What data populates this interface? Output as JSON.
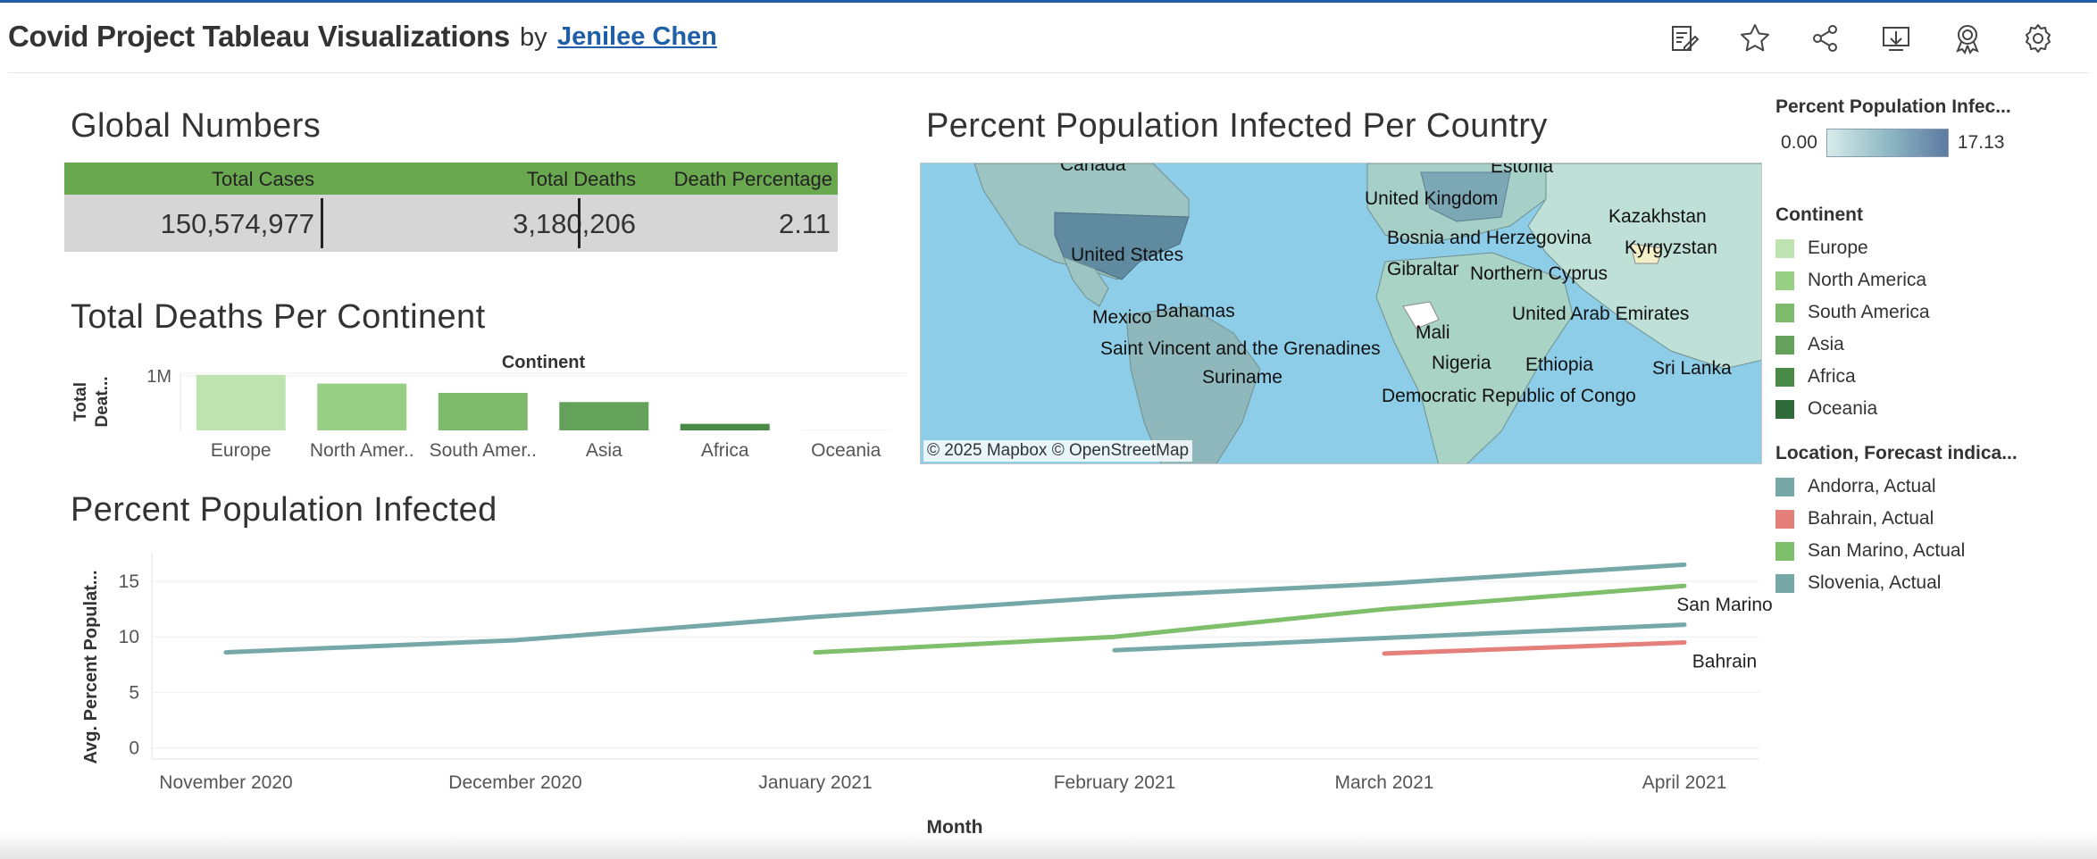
{
  "header": {
    "title": "Covid Project Tableau Visualizations",
    "by": "by",
    "author": "Jenilee Chen",
    "icons": [
      "edit-icon",
      "favorite-star-icon",
      "share-icon",
      "download-icon",
      "badge-icon",
      "settings-gear-icon"
    ]
  },
  "global_numbers": {
    "title": "Global Numbers",
    "headers": [
      "Total Cases",
      "Total Deaths",
      "Death Percentage"
    ],
    "values": [
      "150,574,977",
      "3,180,206",
      "2.11"
    ],
    "header_color": "#6aa84f"
  },
  "map": {
    "title": "Percent Population Infected Per Country",
    "labels": [
      "Canada",
      "Estonia",
      "United Kingdom",
      "Kazakhstan",
      "United States",
      "Bosnia and Herzegovina",
      "Kyrgyzstan",
      "Gibraltar",
      "Northern Cyprus",
      "Mexico",
      "Bahamas",
      "United Arab Emirates",
      "Mali",
      "Saint Vincent and the Grenadines",
      "Nigeria",
      "Ethiopia",
      "Sri Lanka",
      "Suriname",
      "Democratic Republic of Congo"
    ],
    "attribution": "© 2025 Mapbox  © OpenStreetMap",
    "ocean_color": "#8ecde8"
  },
  "legends": {
    "infected": {
      "title": "Percent Population Infec...",
      "min": "0.00",
      "max": "17.13"
    },
    "continent": {
      "title": "Continent",
      "items": [
        {
          "label": "Europe",
          "color": "#bfe3b0"
        },
        {
          "label": "North America",
          "color": "#97cf85"
        },
        {
          "label": "South America",
          "color": "#7dba6b"
        },
        {
          "label": "Asia",
          "color": "#64a15a"
        },
        {
          "label": "Africa",
          "color": "#4a8a47"
        },
        {
          "label": "Oceania",
          "color": "#2f6b3a"
        }
      ]
    },
    "location": {
      "title": "Location, Forecast indica...",
      "items": [
        {
          "label": "Andorra, Actual",
          "color": "#76a8a8"
        },
        {
          "label": "Bahrain, Actual",
          "color": "#e47f7a"
        },
        {
          "label": "San Marino, Actual",
          "color": "#7dbf6a"
        },
        {
          "label": "Slovenia, Actual",
          "color": "#76a8a8"
        }
      ]
    }
  },
  "chart_data": [
    {
      "type": "bar",
      "title": "Total Deaths Per Continent",
      "xlabel": "Continent",
      "ylabel": "Total Deat...",
      "categories": [
        "Europe",
        "North Amer..",
        "South Amer..",
        "Asia",
        "Africa",
        "Oceania"
      ],
      "values": [
        1020000,
        860000,
        690000,
        520000,
        120000,
        1000
      ],
      "yticks": [
        {
          "value": 1000000,
          "label": "1M"
        }
      ],
      "ylim": [
        0,
        1050000
      ],
      "colors": [
        "#bfe3b0",
        "#97cf85",
        "#7dba6b",
        "#64a15a",
        "#4a8a47",
        "#2f6b3a"
      ],
      "grid": true
    },
    {
      "type": "line",
      "title": "Percent Population Infected",
      "xlabel": "Month",
      "ylabel": "Avg. Percent Populat...",
      "x": [
        "November 2020",
        "December 2020",
        "January 2021",
        "February 2021",
        "March 2021",
        "April 2021"
      ],
      "ylim": [
        -1,
        17.5
      ],
      "yticks": [
        0,
        5,
        10,
        15
      ],
      "series": [
        {
          "name": "Andorra, Actual",
          "color": "#76a8a8",
          "values": [
            8.6,
            9.7,
            11.8,
            13.6,
            14.8,
            16.5
          ]
        },
        {
          "name": "San Marino, Actual",
          "color": "#7dbf6a",
          "values": [
            null,
            null,
            8.6,
            10.0,
            12.5,
            14.6
          ],
          "end_label": "San Marino"
        },
        {
          "name": "Slovenia, Actual",
          "color": "#76a8a8",
          "values": [
            null,
            null,
            null,
            8.8,
            9.9,
            11.1
          ]
        },
        {
          "name": "Bahrain, Actual",
          "color": "#e47f7a",
          "values": [
            null,
            null,
            null,
            null,
            8.5,
            9.5
          ],
          "end_label": "Bahrain"
        }
      ],
      "grid": true
    }
  ]
}
